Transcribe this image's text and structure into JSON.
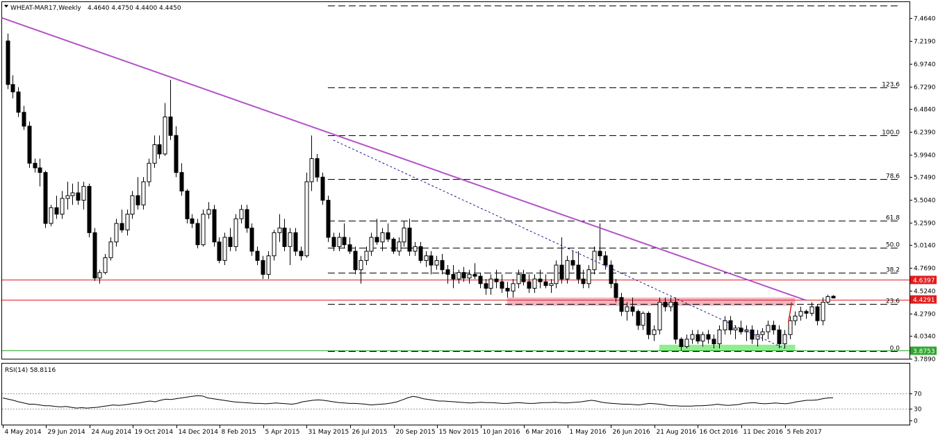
{
  "header": {
    "symbol": "WHEAT-MAR17,Weekly",
    "ohlc": "4.4640 4.4750 4.4400 4.4450",
    "menu_icon": "triangle-down-icon"
  },
  "rsi": {
    "title": "RSI(14) 58.8116",
    "levels": [
      70,
      30
    ],
    "ticks": [
      "70",
      "30",
      "0"
    ]
  },
  "colors": {
    "bull": "#ffffff",
    "bear": "#000000",
    "trendline": "#b451c8",
    "resistance": "#e11c1c",
    "resistance_zone": "#f4b4c0",
    "support_zone": "#90ee90",
    "support_line": "#2ea52e",
    "fib": "#000000"
  },
  "chart_data": {
    "type": "candlestick",
    "timeframe": "Weekly",
    "ylim": [
      3.789,
      7.64
    ],
    "y_ticks": [
      "7.4640",
      "7.2190",
      "6.9740",
      "6.7290",
      "6.4840",
      "6.2390",
      "5.9940",
      "5.7490",
      "5.5040",
      "5.2590",
      "5.0140",
      "4.7690",
      "4.5240",
      "4.2790",
      "4.0340",
      "3.7890"
    ],
    "y_tick_values": [
      7.464,
      7.219,
      6.974,
      6.729,
      6.484,
      6.239,
      5.994,
      5.749,
      5.504,
      5.259,
      5.014,
      4.769,
      4.524,
      4.279,
      4.034,
      3.789
    ],
    "x_labels": [
      "4 May 2014",
      "29 Jun 2014",
      "24 Aug 2014",
      "19 Oct 2014",
      "14 Dec 2014",
      "8 Feb 2015",
      "5 Apr 2015",
      "31 May 2015",
      "26 Jul 2015",
      "20 Sep 2015",
      "15 Nov 2015",
      "10 Jan 2016",
      "6 Mar 2016",
      "1 May 2016",
      "26 Jun 2016",
      "21 Aug 2016",
      "16 Oct 2016",
      "11 Dec 2016",
      "5 Feb 2017"
    ],
    "x_label_bars": [
      0,
      8,
      16,
      24,
      32,
      40,
      48,
      56,
      64,
      72,
      80,
      88,
      96,
      104,
      112,
      120,
      128,
      136,
      144
    ],
    "price_labels": [
      {
        "text": "4.6397",
        "value": 4.6397,
        "role": "resistance"
      },
      {
        "text": "4.4291",
        "value": 4.4291,
        "role": "resistance-zone"
      },
      {
        "text": "3.8753",
        "value": 3.8753,
        "role": "support-zone"
      }
    ],
    "fib_levels": [
      {
        "label": "100.0",
        "value": 6.2
      },
      {
        "label": "123.6",
        "value": 6.72
      },
      {
        "label": "78.6",
        "value": 5.73
      },
      {
        "label": "61.8",
        "value": 5.28
      },
      {
        "label": "50.0",
        "value": 4.99
      },
      {
        "label": "38.2",
        "value": 4.72
      },
      {
        "label": "23.6",
        "value": 4.38
      },
      {
        "label": "0.0",
        "value": 3.875
      }
    ],
    "fib_extra_level": 7.6,
    "trendline": {
      "bar1": 0,
      "price1": 7.47,
      "bar2": 147,
      "price2": 4.42
    },
    "dotted_trendline": {
      "bar1": 60,
      "price1": 6.15,
      "bar2": 143,
      "price2": 3.9
    },
    "resistance_zone": {
      "bar1": 92,
      "bar2": 145,
      "high": 4.45,
      "low": 4.36
    },
    "support_zone": {
      "bar1": 120,
      "bar2": 145,
      "high": 3.94,
      "low": 3.875
    },
    "candles": [
      [
        7.22,
        7.3,
        6.7,
        6.75
      ],
      [
        6.75,
        6.85,
        6.6,
        6.67
      ],
      [
        6.67,
        6.72,
        6.4,
        6.45
      ],
      [
        6.45,
        6.52,
        6.26,
        6.3
      ],
      [
        6.3,
        6.35,
        5.85,
        5.9
      ],
      [
        5.9,
        5.95,
        5.8,
        5.85
      ],
      [
        5.85,
        5.95,
        5.65,
        5.8
      ],
      [
        5.8,
        5.82,
        5.2,
        5.25
      ],
      [
        5.25,
        5.45,
        5.22,
        5.42
      ],
      [
        5.42,
        5.55,
        5.3,
        5.35
      ],
      [
        5.35,
        5.6,
        5.3,
        5.52
      ],
      [
        5.52,
        5.7,
        5.4,
        5.55
      ],
      [
        5.55,
        5.68,
        5.45,
        5.58
      ],
      [
        5.58,
        5.7,
        5.45,
        5.5
      ],
      [
        5.5,
        5.7,
        5.4,
        5.65
      ],
      [
        5.65,
        5.68,
        5.1,
        5.15
      ],
      [
        5.15,
        5.2,
        4.63,
        4.66
      ],
      [
        4.66,
        4.75,
        4.6,
        4.72
      ],
      [
        4.72,
        4.92,
        4.7,
        4.88
      ],
      [
        4.88,
        5.1,
        4.85,
        5.05
      ],
      [
        5.05,
        5.3,
        5.0,
        5.25
      ],
      [
        5.25,
        5.4,
        5.15,
        5.18
      ],
      [
        5.18,
        5.4,
        5.12,
        5.35
      ],
      [
        5.35,
        5.6,
        5.3,
        5.55
      ],
      [
        5.55,
        5.75,
        5.4,
        5.45
      ],
      [
        5.45,
        5.75,
        5.4,
        5.7
      ],
      [
        5.7,
        5.95,
        5.65,
        5.9
      ],
      [
        5.9,
        6.2,
        5.85,
        6.1
      ],
      [
        6.1,
        6.2,
        5.95,
        6.0
      ],
      [
        6.0,
        6.55,
        5.98,
        6.4
      ],
      [
        6.4,
        6.8,
        6.15,
        6.2
      ],
      [
        6.2,
        6.3,
        5.75,
        5.8
      ],
      [
        5.8,
        5.9,
        5.55,
        5.6
      ],
      [
        5.6,
        5.62,
        5.25,
        5.3
      ],
      [
        5.3,
        5.35,
        5.2,
        5.25
      ],
      [
        5.25,
        5.3,
        4.98,
        5.02
      ],
      [
        5.02,
        5.4,
        5.0,
        5.35
      ],
      [
        5.35,
        5.48,
        5.3,
        5.4
      ],
      [
        5.4,
        5.45,
        5.0,
        5.05
      ],
      [
        5.05,
        5.1,
        4.82,
        4.85
      ],
      [
        4.85,
        5.15,
        4.8,
        5.1
      ],
      [
        5.1,
        5.2,
        4.95,
        5.0
      ],
      [
        5.0,
        5.35,
        4.95,
        5.3
      ],
      [
        5.3,
        5.45,
        5.25,
        5.4
      ],
      [
        5.4,
        5.45,
        5.15,
        5.2
      ],
      [
        5.2,
        5.25,
        4.9,
        4.95
      ],
      [
        4.95,
        5.0,
        4.8,
        4.85
      ],
      [
        4.85,
        4.9,
        4.65,
        4.7
      ],
      [
        4.7,
        4.95,
        4.65,
        4.9
      ],
      [
        4.9,
        5.18,
        4.85,
        5.15
      ],
      [
        5.15,
        5.35,
        5.05,
        5.2
      ],
      [
        5.2,
        5.3,
        4.95,
        5.0
      ],
      [
        5.0,
        5.2,
        4.8,
        5.15
      ],
      [
        5.15,
        5.2,
        4.9,
        4.95
      ],
      [
        4.95,
        5.0,
        4.85,
        4.9
      ],
      [
        4.9,
        5.8,
        4.88,
        5.7
      ],
      [
        5.7,
        6.2,
        5.6,
        5.95
      ],
      [
        5.95,
        6.0,
        5.7,
        5.75
      ],
      [
        5.75,
        5.8,
        5.45,
        5.5
      ],
      [
        5.5,
        5.55,
        5.05,
        5.1
      ],
      [
        5.1,
        5.15,
        4.95,
        5.0
      ],
      [
        5.0,
        5.15,
        4.95,
        5.1
      ],
      [
        5.1,
        5.25,
        4.98,
        5.02
      ],
      [
        5.02,
        5.1,
        4.92,
        4.95
      ],
      [
        4.95,
        5.0,
        4.7,
        4.75
      ],
      [
        4.75,
        4.9,
        4.6,
        4.85
      ],
      [
        4.85,
        5.0,
        4.8,
        4.95
      ],
      [
        4.95,
        5.15,
        4.9,
        5.1
      ],
      [
        5.1,
        5.3,
        5.02,
        5.05
      ],
      [
        5.05,
        5.2,
        4.95,
        5.15
      ],
      [
        5.15,
        5.25,
        5.05,
        5.08
      ],
      [
        5.08,
        5.1,
        4.92,
        4.95
      ],
      [
        4.95,
        5.1,
        4.9,
        5.05
      ],
      [
        5.05,
        5.28,
        5.0,
        5.2
      ],
      [
        5.2,
        5.3,
        4.9,
        4.95
      ],
      [
        4.95,
        5.05,
        4.9,
        5.0
      ],
      [
        5.0,
        5.05,
        4.82,
        4.85
      ],
      [
        4.85,
        4.95,
        4.78,
        4.9
      ],
      [
        4.9,
        4.95,
        4.7,
        4.8
      ],
      [
        4.8,
        4.9,
        4.75,
        4.85
      ],
      [
        4.85,
        4.92,
        4.7,
        4.75
      ],
      [
        4.75,
        4.8,
        4.6,
        4.7
      ],
      [
        4.7,
        4.8,
        4.55,
        4.65
      ],
      [
        4.65,
        4.75,
        4.6,
        4.72
      ],
      [
        4.72,
        4.78,
        4.62,
        4.66
      ],
      [
        4.66,
        4.75,
        4.6,
        4.7
      ],
      [
        4.7,
        4.82,
        4.65,
        4.68
      ],
      [
        4.68,
        4.72,
        4.55,
        4.6
      ],
      [
        4.6,
        4.65,
        4.48,
        4.55
      ],
      [
        4.55,
        4.7,
        4.48,
        4.65
      ],
      [
        4.65,
        4.75,
        4.55,
        4.62
      ],
      [
        4.62,
        4.7,
        4.5,
        4.55
      ],
      [
        4.55,
        4.62,
        4.45,
        4.52
      ],
      [
        4.52,
        4.65,
        4.45,
        4.6
      ],
      [
        4.6,
        4.75,
        4.55,
        4.7
      ],
      [
        4.7,
        4.75,
        4.58,
        4.62
      ],
      [
        4.62,
        4.7,
        4.5,
        4.55
      ],
      [
        4.55,
        4.7,
        4.5,
        4.65
      ],
      [
        4.65,
        4.75,
        4.55,
        4.62
      ],
      [
        4.62,
        4.7,
        4.55,
        4.58
      ],
      [
        4.58,
        4.65,
        4.5,
        4.6
      ],
      [
        4.6,
        4.85,
        4.55,
        4.8
      ],
      [
        4.8,
        5.1,
        4.6,
        4.65
      ],
      [
        4.65,
        4.9,
        4.6,
        4.85
      ],
      [
        4.85,
        4.95,
        4.75,
        4.8
      ],
      [
        4.8,
        4.95,
        4.6,
        4.65
      ],
      [
        4.65,
        4.75,
        4.55,
        4.6
      ],
      [
        4.6,
        4.8,
        4.55,
        4.75
      ],
      [
        4.75,
        5.0,
        4.7,
        4.95
      ],
      [
        4.95,
        5.25,
        4.85,
        4.9
      ],
      [
        4.9,
        4.95,
        4.75,
        4.8
      ],
      [
        4.8,
        4.85,
        4.55,
        4.6
      ],
      [
        4.6,
        4.65,
        4.4,
        4.45
      ],
      [
        4.45,
        4.5,
        4.25,
        4.3
      ],
      [
        4.3,
        4.4,
        4.2,
        4.35
      ],
      [
        4.35,
        4.45,
        4.25,
        4.3
      ],
      [
        4.3,
        4.32,
        4.1,
        4.15
      ],
      [
        4.15,
        4.3,
        4.1,
        4.28
      ],
      [
        4.28,
        4.3,
        4.0,
        4.05
      ],
      [
        4.05,
        4.15,
        3.98,
        4.1
      ],
      [
        4.1,
        4.45,
        4.05,
        4.4
      ],
      [
        4.4,
        4.45,
        4.3,
        4.35
      ],
      [
        4.35,
        4.45,
        4.3,
        4.4
      ],
      [
        4.4,
        4.45,
        3.95,
        4.0
      ],
      [
        4.0,
        4.02,
        3.88,
        3.92
      ],
      [
        3.92,
        4.05,
        3.9,
        4.0
      ],
      [
        4.0,
        4.1,
        3.95,
        4.05
      ],
      [
        4.05,
        4.1,
        3.95,
        3.98
      ],
      [
        3.98,
        4.08,
        3.92,
        4.05
      ],
      [
        4.05,
        4.1,
        3.95,
        4.0
      ],
      [
        4.0,
        4.05,
        3.9,
        3.95
      ],
      [
        3.95,
        4.15,
        3.9,
        4.1
      ],
      [
        4.1,
        4.25,
        4.05,
        4.2
      ],
      [
        4.2,
        4.25,
        4.05,
        4.1
      ],
      [
        4.1,
        4.15,
        4.0,
        4.12
      ],
      [
        4.12,
        4.2,
        4.05,
        4.08
      ],
      [
        4.08,
        4.15,
        3.98,
        4.1
      ],
      [
        4.1,
        4.15,
        3.95,
        4.0
      ],
      [
        4.0,
        4.1,
        3.92,
        4.05
      ],
      [
        4.05,
        4.12,
        3.98,
        4.08
      ],
      [
        4.08,
        4.2,
        4.0,
        4.15
      ],
      [
        4.15,
        4.2,
        4.05,
        4.1
      ],
      [
        4.1,
        4.15,
        3.9,
        3.95
      ],
      [
        3.95,
        4.1,
        3.9,
        4.05
      ],
      [
        4.05,
        4.25,
        4.0,
        4.2
      ],
      [
        4.2,
        4.3,
        4.15,
        4.25
      ],
      [
        4.25,
        4.35,
        4.2,
        4.3
      ],
      [
        4.3,
        4.32,
        4.22,
        4.28
      ],
      [
        4.28,
        4.4,
        4.25,
        4.35
      ],
      [
        4.35,
        4.38,
        4.15,
        4.2
      ],
      [
        4.2,
        4.45,
        4.15,
        4.4
      ],
      [
        4.4,
        4.48,
        4.38,
        4.46
      ],
      [
        4.464,
        4.475,
        4.44,
        4.445
      ]
    ],
    "rsi_values": [
      58,
      55,
      52,
      48,
      45,
      42,
      42,
      40,
      38,
      38,
      36,
      35,
      36,
      34,
      32,
      33,
      32,
      33,
      34,
      36,
      38,
      40,
      39,
      40,
      42,
      44,
      45,
      48,
      50,
      48,
      52,
      55,
      54,
      56,
      58,
      60,
      62,
      64,
      63,
      58,
      56,
      54,
      52,
      50,
      48,
      47,
      46,
      45,
      44,
      44,
      43,
      44,
      45,
      44,
      43,
      42,
      44,
      48,
      50,
      52,
      53,
      52,
      50,
      48,
      46,
      45,
      44,
      44,
      43,
      42,
      40,
      41,
      42,
      43,
      45,
      48,
      53,
      58,
      62,
      60,
      56,
      54,
      52,
      50,
      50,
      49,
      48,
      47,
      46,
      45,
      46,
      47,
      46,
      46,
      45,
      44,
      44,
      45,
      46,
      45,
      44,
      44,
      45,
      46,
      46,
      47,
      46,
      45,
      46,
      47,
      48,
      50,
      52,
      50,
      47,
      45,
      44,
      43,
      42,
      42,
      41,
      40,
      42,
      44,
      43,
      42,
      40,
      38,
      38,
      37,
      37,
      37,
      38,
      38,
      39,
      40,
      42,
      40,
      39,
      40,
      41,
      44,
      45,
      46,
      44,
      43,
      44,
      45,
      44,
      43,
      45,
      48,
      50,
      52,
      52,
      53,
      56,
      58,
      58.8
    ]
  }
}
